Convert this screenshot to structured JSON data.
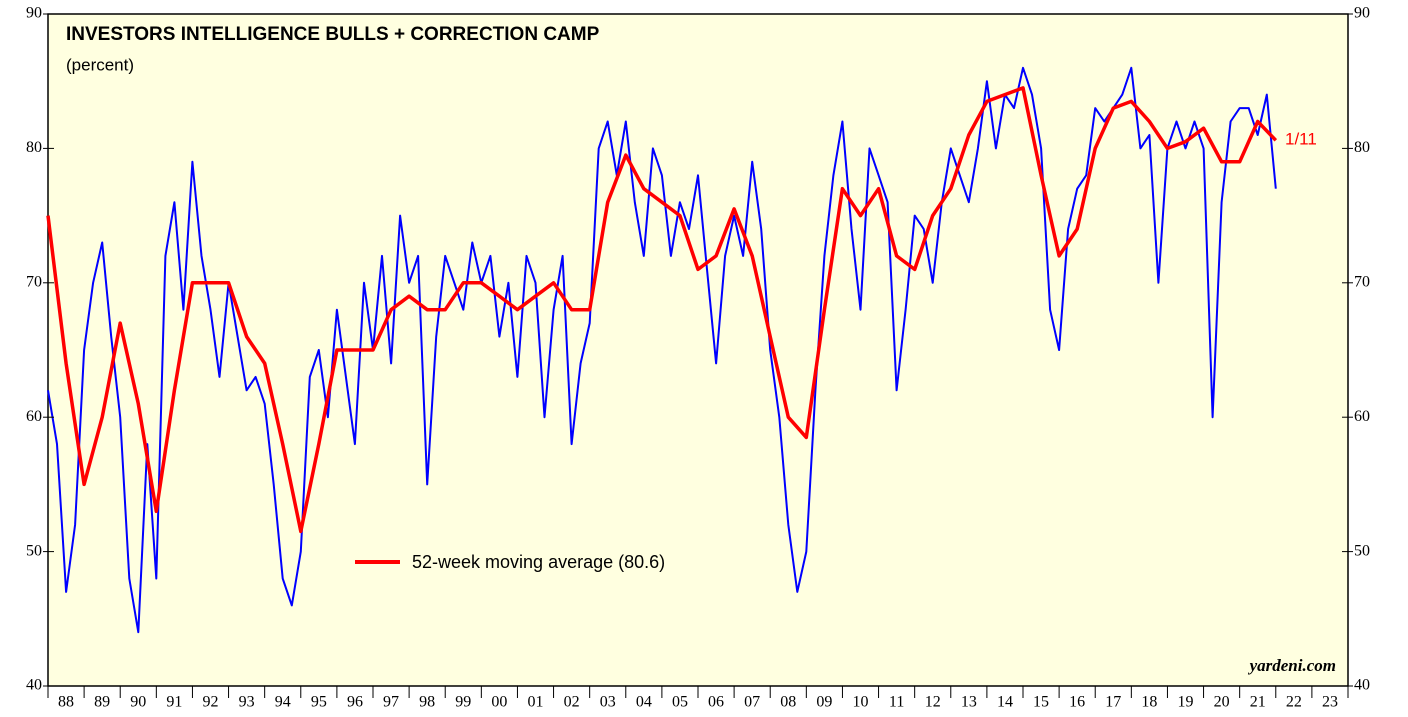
{
  "chart_data": {
    "type": "line",
    "title": "INVESTORS INTELLIGENCE BULLS + CORRECTION CAMP",
    "subtitle": "(percent)",
    "annotation": "1/11",
    "source": "yardeni.com",
    "xlim": [
      1988,
      2024
    ],
    "xticks": [
      {
        "value": 1988.5,
        "label": "88"
      },
      {
        "value": 1989.5,
        "label": "89"
      },
      {
        "value": 1990.5,
        "label": "90"
      },
      {
        "value": 1991.5,
        "label": "91"
      },
      {
        "value": 1992.5,
        "label": "92"
      },
      {
        "value": 1993.5,
        "label": "93"
      },
      {
        "value": 1994.5,
        "label": "94"
      },
      {
        "value": 1995.5,
        "label": "95"
      },
      {
        "value": 1996.5,
        "label": "96"
      },
      {
        "value": 1997.5,
        "label": "97"
      },
      {
        "value": 1998.5,
        "label": "98"
      },
      {
        "value": 1999.5,
        "label": "99"
      },
      {
        "value": 2000.5,
        "label": "00"
      },
      {
        "value": 2001.5,
        "label": "01"
      },
      {
        "value": 2002.5,
        "label": "02"
      },
      {
        "value": 2003.5,
        "label": "03"
      },
      {
        "value": 2004.5,
        "label": "04"
      },
      {
        "value": 2005.5,
        "label": "05"
      },
      {
        "value": 2006.5,
        "label": "06"
      },
      {
        "value": 2007.5,
        "label": "07"
      },
      {
        "value": 2008.5,
        "label": "08"
      },
      {
        "value": 2009.5,
        "label": "09"
      },
      {
        "value": 2010.5,
        "label": "10"
      },
      {
        "value": 2011.5,
        "label": "11"
      },
      {
        "value": 2012.5,
        "label": "12"
      },
      {
        "value": 2013.5,
        "label": "13"
      },
      {
        "value": 2014.5,
        "label": "14"
      },
      {
        "value": 2015.5,
        "label": "15"
      },
      {
        "value": 2016.5,
        "label": "16"
      },
      {
        "value": 2017.5,
        "label": "17"
      },
      {
        "value": 2018.5,
        "label": "18"
      },
      {
        "value": 2019.5,
        "label": "19"
      },
      {
        "value": 2020.5,
        "label": "20"
      },
      {
        "value": 2021.5,
        "label": "21"
      },
      {
        "value": 2022.5,
        "label": "22"
      },
      {
        "value": 2023.5,
        "label": "23"
      }
    ],
    "ylim": [
      40,
      90
    ],
    "yticks": [
      40,
      50,
      60,
      70,
      80,
      90
    ],
    "series": [
      {
        "name": "Bulls + Correction",
        "color": "#0000ff",
        "x": [
          1988,
          1988.25,
          1988.5,
          1988.75,
          1989,
          1989.25,
          1989.5,
          1989.75,
          1990,
          1990.25,
          1990.5,
          1990.75,
          1991,
          1991.25,
          1991.5,
          1991.75,
          1992,
          1992.25,
          1992.5,
          1992.75,
          1993,
          1993.25,
          1993.5,
          1993.75,
          1994,
          1994.25,
          1994.5,
          1994.75,
          1995,
          1995.25,
          1995.5,
          1995.75,
          1996,
          1996.25,
          1996.5,
          1996.75,
          1997,
          1997.25,
          1997.5,
          1997.75,
          1998,
          1998.25,
          1998.5,
          1998.75,
          1999,
          1999.25,
          1999.5,
          1999.75,
          2000,
          2000.25,
          2000.5,
          2000.75,
          2001,
          2001.25,
          2001.5,
          2001.75,
          2002,
          2002.25,
          2002.5,
          2002.75,
          2003,
          2003.25,
          2003.5,
          2003.75,
          2004,
          2004.25,
          2004.5,
          2004.75,
          2005,
          2005.25,
          2005.5,
          2005.75,
          2006,
          2006.25,
          2006.5,
          2006.75,
          2007,
          2007.25,
          2007.5,
          2007.75,
          2008,
          2008.25,
          2008.5,
          2008.75,
          2009,
          2009.25,
          2009.5,
          2009.75,
          2010,
          2010.25,
          2010.5,
          2010.75,
          2011,
          2011.25,
          2011.5,
          2011.75,
          2012,
          2012.25,
          2012.5,
          2012.75,
          2013,
          2013.25,
          2013.5,
          2013.75,
          2014,
          2014.25,
          2014.5,
          2014.75,
          2015,
          2015.25,
          2015.5,
          2015.75,
          2016,
          2016.25,
          2016.5,
          2016.75,
          2017,
          2017.25,
          2017.5,
          2017.75,
          2018,
          2018.25,
          2018.5,
          2018.75,
          2019,
          2019.25,
          2019.5,
          2019.75,
          2020,
          2020.25,
          2020.5,
          2020.75,
          2021,
          2021.25,
          2021.5,
          2021.75,
          2022
        ],
        "values": [
          62,
          58,
          47,
          52,
          65,
          70,
          73,
          66,
          60,
          48,
          44,
          58,
          48,
          72,
          76,
          68,
          79,
          72,
          68,
          63,
          70,
          66,
          62,
          63,
          61,
          55,
          48,
          46,
          50,
          63,
          65,
          60,
          68,
          63,
          58,
          70,
          65,
          72,
          64,
          75,
          70,
          72,
          55,
          66,
          72,
          70,
          68,
          73,
          70,
          72,
          66,
          70,
          63,
          72,
          70,
          60,
          68,
          72,
          58,
          64,
          67,
          80,
          82,
          78,
          82,
          76,
          72,
          80,
          78,
          72,
          76,
          74,
          78,
          71,
          64,
          72,
          75,
          72,
          79,
          74,
          65,
          60,
          52,
          47,
          50,
          62,
          72,
          78,
          82,
          74,
          68,
          80,
          78,
          76,
          62,
          68,
          75,
          74,
          70,
          76,
          80,
          78,
          76,
          80,
          85,
          80,
          84,
          83,
          86,
          84,
          80,
          68,
          65,
          74,
          77,
          78,
          83,
          82,
          83,
          84,
          86,
          80,
          81,
          70,
          80,
          82,
          80,
          82,
          80,
          60,
          76,
          82,
          83,
          83,
          81,
          84,
          77
        ]
      },
      {
        "name": "52-week moving average (80.6)",
        "color": "#ff0000",
        "x": [
          1988,
          1988.5,
          1989,
          1989.5,
          1990,
          1990.5,
          1991,
          1991.5,
          1992,
          1992.5,
          1993,
          1993.5,
          1994,
          1994.5,
          1995,
          1995.5,
          1996,
          1996.5,
          1997,
          1997.5,
          1998,
          1998.5,
          1999,
          1999.5,
          2000,
          2000.5,
          2001,
          2001.5,
          2002,
          2002.5,
          2003,
          2003.5,
          2004,
          2004.5,
          2005,
          2005.5,
          2006,
          2006.5,
          2007,
          2007.5,
          2008,
          2008.5,
          2009,
          2009.5,
          2010,
          2010.5,
          2011,
          2011.5,
          2012,
          2012.5,
          2013,
          2013.5,
          2014,
          2014.5,
          2015,
          2015.5,
          2016,
          2016.5,
          2017,
          2017.5,
          2018,
          2018.5,
          2019,
          2019.5,
          2020,
          2020.5,
          2021,
          2021.5,
          2022
        ],
        "values": [
          75,
          64,
          55,
          60,
          67,
          61,
          53,
          62,
          70,
          70,
          70,
          66,
          64,
          58,
          51.5,
          58,
          65,
          65,
          65,
          68,
          69,
          68,
          68,
          70,
          70,
          69,
          68,
          69,
          70,
          68,
          68,
          76,
          79.5,
          77,
          76,
          75,
          71,
          72,
          75.5,
          72,
          66,
          60,
          58.5,
          68,
          77,
          75,
          77,
          72,
          71,
          75,
          77,
          81,
          83.5,
          84,
          84.5,
          78,
          72,
          74,
          80,
          83,
          83.5,
          82,
          80,
          80.5,
          81.5,
          79,
          79,
          82,
          80.6
        ]
      }
    ]
  }
}
